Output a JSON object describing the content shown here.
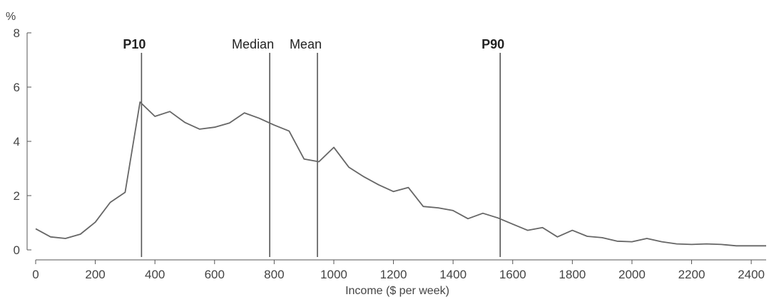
{
  "chart_data": {
    "type": "line",
    "title": "",
    "xlabel": "Income ($ per week)",
    "ylabel": "%",
    "xlim": [
      0,
      2450
    ],
    "ylim": [
      0,
      8
    ],
    "xticks": [
      0,
      200,
      400,
      600,
      800,
      1000,
      1200,
      1400,
      1600,
      1800,
      2000,
      2200,
      2400
    ],
    "yticks": [
      0,
      2,
      4,
      6,
      8
    ],
    "grid": false,
    "series": [
      {
        "name": "",
        "color": "#666666",
        "x": [
          0,
          50,
          100,
          150,
          200,
          250,
          300,
          350,
          400,
          450,
          500,
          550,
          600,
          650,
          700,
          750,
          800,
          850,
          900,
          950,
          1000,
          1050,
          1100,
          1150,
          1200,
          1250,
          1300,
          1350,
          1400,
          1450,
          1500,
          1550,
          1600,
          1650,
          1700,
          1750,
          1800,
          1850,
          1900,
          1950,
          2000,
          2050,
          2100,
          2150,
          2200,
          2250,
          2300,
          2350,
          2400,
          2450
        ],
        "y": [
          0.78,
          0.48,
          0.42,
          0.58,
          1.02,
          1.75,
          2.12,
          5.45,
          4.92,
          5.1,
          4.7,
          4.45,
          4.52,
          4.68,
          5.05,
          4.85,
          4.6,
          4.38,
          3.35,
          3.25,
          3.78,
          3.05,
          2.7,
          2.4,
          2.15,
          2.3,
          1.6,
          1.55,
          1.45,
          1.15,
          1.35,
          1.18,
          0.95,
          0.72,
          0.82,
          0.48,
          0.72,
          0.5,
          0.45,
          0.32,
          0.3,
          0.42,
          0.3,
          0.22,
          0.2,
          0.22,
          0.2,
          0.15,
          0.15,
          0.15
        ]
      }
    ],
    "annotations": [
      {
        "label": "P10",
        "x": 355,
        "bold": true,
        "label_anchor": "end"
      },
      {
        "label": "Median",
        "x": 785,
        "bold": false,
        "label_anchor": "end"
      },
      {
        "label": "Mean",
        "x": 945,
        "bold": false,
        "label_anchor": "end"
      },
      {
        "label": "P90",
        "x": 1558,
        "bold": true,
        "label_anchor": "end"
      }
    ]
  }
}
